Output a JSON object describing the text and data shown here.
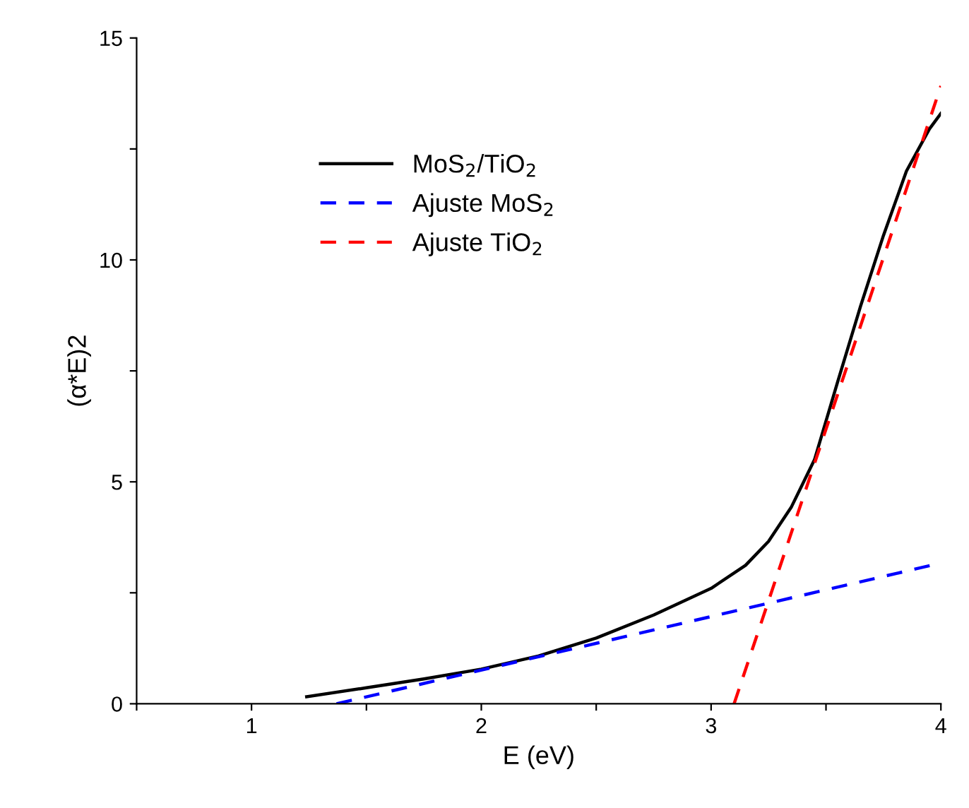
{
  "chart_data": {
    "type": "line",
    "xlabel": "E (eV)",
    "ylabel": "(α*E)2",
    "xlim": [
      0.5,
      4
    ],
    "xticks": [
      {
        "value": 0.5,
        "label": null
      },
      1,
      {
        "value": 1.5,
        "label": null
      },
      2,
      {
        "value": 2.5,
        "label": null
      },
      3,
      {
        "value": 3.5,
        "label": null
      },
      4
    ],
    "ylim": [
      0,
      15
    ],
    "yticks": [
      0,
      {
        "value": 2.5,
        "label": null
      },
      5,
      {
        "value": 7.5,
        "label": null
      },
      10,
      {
        "value": 12.5,
        "label": null
      },
      15
    ],
    "grid": false,
    "legend": "top left",
    "marker": "none",
    "series": [
      {
        "name": "MoS$_{2}$/TiO$_{2}$",
        "color": "#000000",
        "line_style": "solid",
        "x": [
          1.24,
          1.5,
          1.75,
          2.0,
          2.25,
          2.5,
          2.75,
          3.0,
          3.15,
          3.25,
          3.35,
          3.45,
          3.55,
          3.65,
          3.75,
          3.85,
          3.95,
          4.0
        ],
        "values": [
          0.16,
          0.36,
          0.56,
          0.78,
          1.08,
          1.48,
          2.0,
          2.6,
          3.12,
          3.66,
          4.44,
          5.5,
          7.24,
          8.95,
          10.55,
          12.0,
          12.95,
          13.3
        ]
      },
      {
        "name": "Ajuste MoS$_{2}$",
        "color": "#0000ff",
        "line_style": "dashed",
        "x": [
          1.37,
          4.0
        ],
        "values": [
          0,
          3.17
        ]
      },
      {
        "name": "Ajuste TiO$_{2}$",
        "color": "#ff0000",
        "line_style": "dashed",
        "x": [
          3.1,
          4.0
        ],
        "values": [
          0,
          13.92
        ]
      }
    ]
  }
}
